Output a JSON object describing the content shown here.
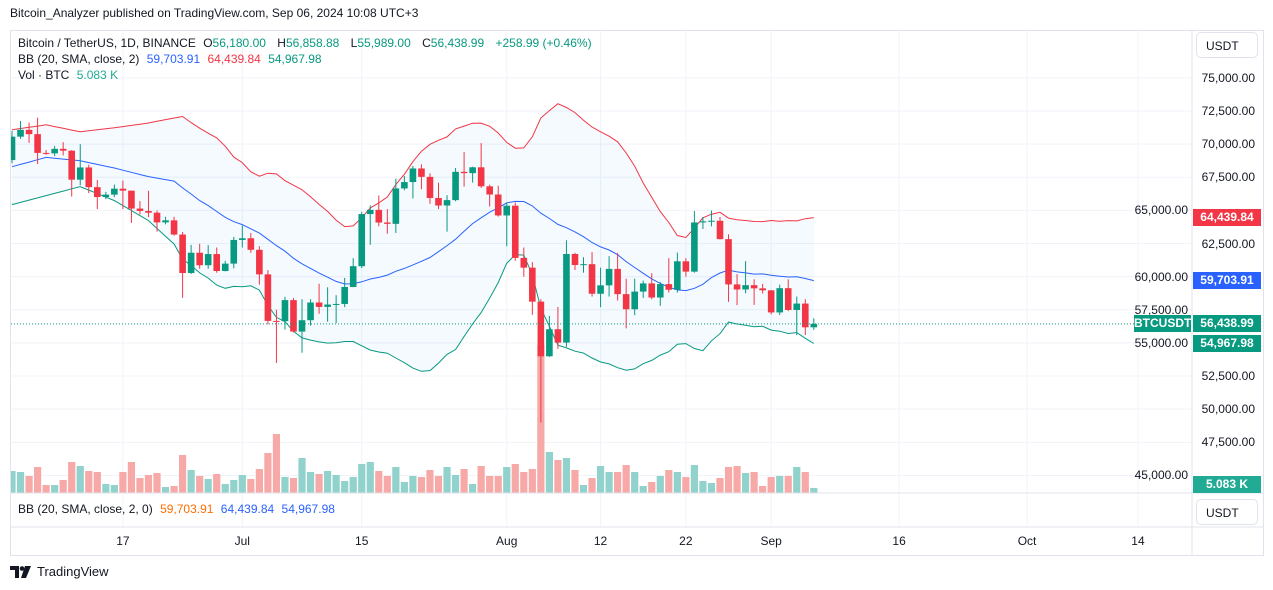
{
  "attribution": "Bitcoin_Analyzer published on TradingView.com, Sep 06, 2024 10:08 UTC+3",
  "legend": {
    "symbol": "Bitcoin / TetherUS, 1D, BINANCE",
    "open_label": "O",
    "open": "56,180.00",
    "high_label": "H",
    "high": "56,858.88",
    "low_label": "L",
    "low": "55,989.00",
    "close_label": "C",
    "close": "56,438.99",
    "change": "+258.99 (+0.46%)"
  },
  "bb_legend": {
    "label": "BB (20, SMA, close, 2)",
    "basis": "59,703.91",
    "upper": "64,439.84",
    "lower": "54,967.98"
  },
  "vol_legend": {
    "label": "Vol · BTC",
    "value": "5.083 K"
  },
  "lower_pane": {
    "label": "BB (20, SMA, close, 2, 0)",
    "basis": "59,703.91",
    "upper": "64,439.84",
    "lower": "54,967.98",
    "currency": "USDT"
  },
  "price_axis": {
    "currency": "USDT",
    "ticks": [
      "75,000.00",
      "72,500.00",
      "70,000.00",
      "67,500.00",
      "65,000.00",
      "62,500.00",
      "60,000.00",
      "57,500.00",
      "55,000.00",
      "52,500.00",
      "50,000.00",
      "47,500.00",
      "45,000.00"
    ],
    "tick_values": [
      75000,
      72500,
      70000,
      67500,
      65000,
      62500,
      60000,
      57500,
      55000,
      52500,
      50000,
      47500,
      45000
    ]
  },
  "price_tags": {
    "upper": {
      "text": "64,439.84",
      "value": 64439.84,
      "color": "#f23645"
    },
    "basis": {
      "text": "59,703.91",
      "value": 59703.91,
      "color": "#2962ff"
    },
    "last": {
      "text": "56,438.99",
      "value": 56438.99,
      "color": "#089981"
    },
    "lower": {
      "text": "54,967.98",
      "value": 54967.98,
      "color": "#089981"
    },
    "volume": {
      "text": "5.083 K",
      "color": "#22ab94"
    }
  },
  "symbol_tag": "BTCUSDT",
  "footer": {
    "brand": "TradingView"
  },
  "colors": {
    "up": "#089981",
    "down": "#f23645",
    "vol_up": "#92d2cc",
    "vol_down": "#f7a9a7",
    "bb_upper": "#f23645",
    "bb_basis": "#2962ff",
    "bb_lower": "#089981",
    "bb_fill": "rgba(33,150,243,0.05)",
    "grid": "#f0f3fa"
  },
  "chart_data": {
    "type": "candlestick",
    "ylim": [
      43675,
      78540
    ],
    "grid": true,
    "x_ticks": [
      {
        "label": "17",
        "date": "2024-06-17"
      },
      {
        "label": "Jul",
        "date": "2024-07-01"
      },
      {
        "label": "15",
        "date": "2024-07-15"
      },
      {
        "label": "Aug",
        "date": "2024-08-01"
      },
      {
        "label": "12",
        "date": "2024-08-12"
      },
      {
        "label": "22",
        "date": "2024-08-22"
      },
      {
        "label": "Sep",
        "date": "2024-09-01"
      },
      {
        "label": "16",
        "date": "2024-09-16"
      },
      {
        "label": "Oct",
        "date": "2024-10-01"
      },
      {
        "label": "14",
        "date": "2024-10-14"
      }
    ],
    "dates": [
      "2024-06-04",
      "2024-06-05",
      "2024-06-06",
      "2024-06-07",
      "2024-06-08",
      "2024-06-09",
      "2024-06-10",
      "2024-06-11",
      "2024-06-12",
      "2024-06-13",
      "2024-06-14",
      "2024-06-15",
      "2024-06-16",
      "2024-06-17",
      "2024-06-18",
      "2024-06-19",
      "2024-06-20",
      "2024-06-21",
      "2024-06-22",
      "2024-06-23",
      "2024-06-24",
      "2024-06-25",
      "2024-06-26",
      "2024-06-27",
      "2024-06-28",
      "2024-06-29",
      "2024-06-30",
      "2024-07-01",
      "2024-07-02",
      "2024-07-03",
      "2024-07-04",
      "2024-07-05",
      "2024-07-06",
      "2024-07-07",
      "2024-07-08",
      "2024-07-09",
      "2024-07-10",
      "2024-07-11",
      "2024-07-12",
      "2024-07-13",
      "2024-07-14",
      "2024-07-15",
      "2024-07-16",
      "2024-07-17",
      "2024-07-18",
      "2024-07-19",
      "2024-07-20",
      "2024-07-21",
      "2024-07-22",
      "2024-07-23",
      "2024-07-24",
      "2024-07-25",
      "2024-07-26",
      "2024-07-27",
      "2024-07-28",
      "2024-07-29",
      "2024-07-30",
      "2024-07-31",
      "2024-08-01",
      "2024-08-02",
      "2024-08-03",
      "2024-08-04",
      "2024-08-05",
      "2024-08-06",
      "2024-08-07",
      "2024-08-08",
      "2024-08-09",
      "2024-08-10",
      "2024-08-11",
      "2024-08-12",
      "2024-08-13",
      "2024-08-14",
      "2024-08-15",
      "2024-08-16",
      "2024-08-17",
      "2024-08-18",
      "2024-08-19",
      "2024-08-20",
      "2024-08-21",
      "2024-08-22",
      "2024-08-23",
      "2024-08-24",
      "2024-08-25",
      "2024-08-26",
      "2024-08-27",
      "2024-08-28",
      "2024-08-29",
      "2024-08-30",
      "2024-08-31",
      "2024-09-01",
      "2024-09-02",
      "2024-09-03",
      "2024-09-04",
      "2024-09-05",
      "2024-09-06"
    ],
    "open": [
      68800,
      70567,
      71082,
      70757,
      69342,
      69305,
      69648,
      69508,
      67321,
      68243,
      66756,
      66011,
      66191,
      66640,
      66491,
      65140,
      64960,
      64828,
      64096,
      64252,
      63180,
      60277,
      61806,
      60864,
      61706,
      60427,
      60986,
      62772,
      62900,
      62029,
      60173,
      56662,
      56639,
      58231,
      55857,
      56714,
      58051,
      57718,
      57899,
      57942,
      59224,
      60790,
      64724,
      65043,
      64087,
      63987,
      66661,
      67140,
      68166,
      67533,
      65940,
      65370,
      65778,
      67912,
      67813,
      68255,
      66819,
      66201,
      64620,
      65357,
      61415,
      60680,
      58116,
      53991,
      56034,
      55027,
      61710,
      60880,
      60945,
      58712,
      59346,
      60587,
      58683,
      57541,
      58874,
      59491,
      58427,
      59439,
      59014,
      61159,
      60381,
      64094,
      64178,
      64220,
      62834,
      59416,
      59034,
      59359,
      59119,
      58969,
      57301,
      59132,
      57487,
      57970,
      56180
    ],
    "high": [
      71000,
      71750,
      71625,
      71997,
      69560,
      69850,
      70150,
      69550,
      70000,
      68450,
      67300,
      66400,
      66950,
      67250,
      66500,
      65700,
      66480,
      65000,
      64520,
      64520,
      63370,
      62400,
      62480,
      62380,
      62200,
      61200,
      63000,
      63860,
      63300,
      62300,
      60500,
      57500,
      58480,
      58380,
      58300,
      58300,
      59470,
      59200,
      58600,
      59900,
      61400,
      64900,
      65390,
      66128,
      65100,
      67400,
      67600,
      68350,
      68480,
      67800,
      67100,
      66150,
      68200,
      69400,
      68300,
      70079,
      66950,
      66860,
      65600,
      65596,
      62200,
      61100,
      58305,
      57040,
      57720,
      62745,
      61800,
      61470,
      61850,
      60680,
      61550,
      61800,
      59850,
      59850,
      59700,
      60260,
      59600,
      61400,
      61820,
      61400,
      64950,
      64500,
      65000,
      64500,
      63200,
      60200,
      61170,
      59800,
      59460,
      59000,
      59400,
      59800,
      58500,
      58300,
      56858.88
    ],
    "low": [
      68550,
      70400,
      70100,
      68500,
      69200,
      69100,
      69150,
      66050,
      66900,
      66300,
      65100,
      65850,
      66000,
      65100,
      64060,
      64700,
      64500,
      63400,
      63950,
      63100,
      58402,
      60200,
      60600,
      60600,
      60300,
      60400,
      60630,
      62200,
      61800,
      59400,
      56400,
      53485,
      56000,
      55800,
      54260,
      56300,
      57200,
      56600,
      56500,
      57700,
      59200,
      60650,
      62410,
      63800,
      63240,
      63300,
      66520,
      65900,
      66600,
      65500,
      65100,
      63400,
      65700,
      66800,
      67100,
      66700,
      65300,
      64530,
      62300,
      61200,
      60000,
      57120,
      49000,
      53950,
      54550,
      54700,
      60500,
      60300,
      58500,
      57700,
      58500,
      58200,
      56100,
      57100,
      58400,
      58300,
      57800,
      58800,
      58800,
      60000,
      60300,
      63600,
      63800,
      62800,
      58100,
      57850,
      58750,
      57870,
      58730,
      57150,
      57100,
      57400,
      55600,
      55600,
      55989
    ],
    "close": [
      70567,
      71082,
      70757,
      69342,
      69305,
      69648,
      69508,
      67321,
      68243,
      66756,
      66011,
      66191,
      66640,
      66491,
      65140,
      64960,
      64828,
      64096,
      64252,
      63180,
      60277,
      61806,
      60864,
      61706,
      60427,
      60986,
      62772,
      62900,
      62029,
      60173,
      56662,
      56639,
      58231,
      55857,
      56714,
      58051,
      57718,
      57899,
      57942,
      59224,
      60790,
      64724,
      65043,
      64087,
      63987,
      66661,
      67140,
      68166,
      67533,
      65940,
      65370,
      65778,
      67912,
      67813,
      68255,
      66819,
      66201,
      64620,
      65357,
      61415,
      60680,
      58116,
      53991,
      56034,
      55027,
      61710,
      60880,
      60945,
      58712,
      59346,
      60587,
      58683,
      57541,
      58874,
      59491,
      58427,
      59439,
      59014,
      61159,
      60381,
      64094,
      64178,
      64220,
      62834,
      59416,
      59034,
      59359,
      59119,
      58969,
      57301,
      59132,
      57487,
      57970,
      56180,
      56438.99
    ],
    "volume_k": [
      22,
      21,
      17,
      26,
      8,
      8,
      13,
      31,
      27,
      22,
      21,
      9,
      8,
      21,
      31,
      15,
      18,
      20,
      6,
      7,
      38,
      23,
      17,
      14,
      19,
      9,
      13,
      18,
      14,
      24,
      40,
      59,
      16,
      15,
      35,
      21,
      19,
      22,
      18,
      12,
      16,
      29,
      31,
      22,
      17,
      26,
      11,
      17,
      16,
      23,
      17,
      26,
      18,
      24,
      9,
      27,
      17,
      17,
      26,
      29,
      21,
      24,
      148,
      41,
      33,
      35,
      23,
      8,
      15,
      27,
      21,
      21,
      28,
      21,
      7,
      11,
      17,
      23,
      21,
      16,
      28,
      12,
      10,
      15,
      26,
      27,
      20,
      21,
      7,
      16,
      17,
      17,
      26,
      21,
      5.083
    ],
    "bb_period": 20,
    "bb_mult": 2,
    "bb_early_readings": [
      {
        "date": "2024-06-04",
        "upper": 71085,
        "basis": 68300,
        "lower": 65440
      },
      {
        "date": "2024-06-08",
        "upper": 71460,
        "basis": 69000,
        "lower": 66115
      },
      {
        "date": "2024-06-12",
        "upper": 70930,
        "basis": 68750,
        "lower": 66800
      },
      {
        "date": "2024-06-16",
        "upper": 71235,
        "basis": 68200,
        "lower": 65740
      },
      {
        "date": "2024-06-20",
        "upper": 71600,
        "basis": 67550,
        "lower": 64230
      }
    ]
  }
}
